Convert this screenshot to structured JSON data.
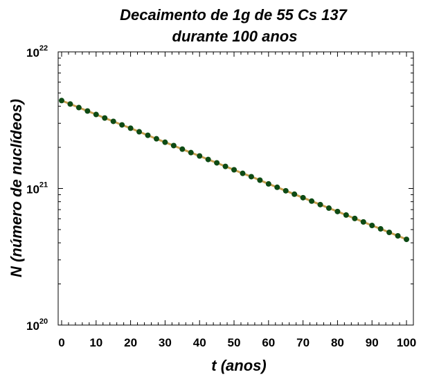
{
  "chart_data": {
    "type": "scatter",
    "title_line1": "Decaimento de 1g de 55 Cs 137",
    "title_line2": "durante 100 anos",
    "xlabel": "t (anos)",
    "ylabel": "N (número de nuclídeos)",
    "xlim": [
      -1,
      102
    ],
    "ylim_log10": [
      20,
      22
    ],
    "y_scale": "log",
    "x_ticks": [
      "0",
      "10",
      "20",
      "30",
      "40",
      "50",
      "60",
      "70",
      "80",
      "90",
      "100"
    ],
    "y_tick_labels": [
      {
        "base": "10",
        "exp": "20"
      },
      {
        "base": "10",
        "exp": "21"
      },
      {
        "base": "10",
        "exp": "22"
      }
    ],
    "grid": false,
    "series": [
      {
        "points_color": "#0d4a14",
        "line_color": "#c8a050",
        "x": [
          0,
          2.5,
          5,
          7.5,
          10,
          12.5,
          15,
          17.5,
          20,
          22.5,
          25,
          27.5,
          30,
          32.5,
          35,
          37.5,
          40,
          42.5,
          45,
          47.5,
          50,
          52.5,
          55,
          57.5,
          60,
          62.5,
          65,
          67.5,
          70,
          72.5,
          75,
          77.5,
          80,
          82.5,
          85,
          87.5,
          90,
          92.5,
          95,
          97.5,
          100
        ],
        "y": [
          4.4e+21,
          4.15e+21,
          3.91e+21,
          3.69e+21,
          3.48e+21,
          3.28e+21,
          3.1e+21,
          2.92e+21,
          2.76e+21,
          2.6e+21,
          2.45e+21,
          2.31e+21,
          2.18e+21,
          2.06e+21,
          1.94e+21,
          1.83e+21,
          1.73e+21,
          1.63e+21,
          1.54e+21,
          1.45e+21,
          1.37e+21,
          1.29e+21,
          1.22e+21,
          1.15e+21,
          1.08e+21,
          1.02e+21,
          9.62e+20,
          9.08e+20,
          8.56e+20,
          8.08e+20,
          7.62e+20,
          7.18e+20,
          6.78e+20,
          6.39e+20,
          6.03e+20,
          5.69e+20,
          5.36e+20,
          5.06e+20,
          4.77e+20,
          4.5e+20,
          4.24e+20
        ]
      }
    ]
  }
}
